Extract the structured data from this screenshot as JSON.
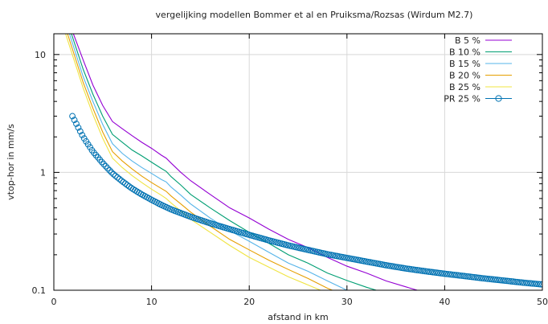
{
  "chart_data": {
    "type": "line",
    "title": "vergelijking modellen Bommer et al en Pruiksma/Rozsas (Wirdum M2.7)",
    "xlabel": "afstand in km",
    "ylabel": "vtop-hor in mm/s",
    "xlim": [
      0,
      50
    ],
    "ylim": [
      0.1,
      15
    ],
    "yscale": "log",
    "grid": true,
    "legend_position": "top-right",
    "x_ticks": [
      0,
      10,
      20,
      30,
      40,
      50
    ],
    "y_ticks": [
      {
        "value": 0.1,
        "label": "0.1"
      },
      {
        "value": 1,
        "label": "1"
      },
      {
        "value": 10,
        "label": "10"
      }
    ],
    "series": [
      {
        "name": "B  5 %",
        "color": "#9400d3",
        "style": "line",
        "points": [
          [
            2.0,
            15
          ],
          [
            3,
            9.0
          ],
          [
            4,
            5.5
          ],
          [
            5,
            3.7
          ],
          [
            6,
            2.7
          ],
          [
            7,
            2.35
          ],
          [
            8,
            2.05
          ],
          [
            9,
            1.8
          ],
          [
            10,
            1.6
          ],
          [
            11,
            1.4
          ],
          [
            11.5,
            1.32
          ],
          [
            12,
            1.2
          ],
          [
            13,
            1.0
          ],
          [
            14,
            0.85
          ],
          [
            16,
            0.65
          ],
          [
            18,
            0.5
          ],
          [
            20,
            0.41
          ],
          [
            22,
            0.33
          ],
          [
            24,
            0.27
          ],
          [
            26,
            0.23
          ],
          [
            28,
            0.19
          ],
          [
            30,
            0.16
          ],
          [
            32,
            0.14
          ],
          [
            34,
            0.12
          ],
          [
            36,
            0.107
          ],
          [
            37.2,
            0.1
          ]
        ]
      },
      {
        "name": "B  10 %",
        "color": "#009e73",
        "style": "line",
        "points": [
          [
            1.8,
            15
          ],
          [
            3,
            7.5
          ],
          [
            4,
            4.6
          ],
          [
            5,
            3.0
          ],
          [
            6,
            2.1
          ],
          [
            7,
            1.8
          ],
          [
            8,
            1.55
          ],
          [
            9,
            1.38
          ],
          [
            10,
            1.22
          ],
          [
            11,
            1.08
          ],
          [
            11.5,
            1.02
          ],
          [
            12,
            0.92
          ],
          [
            13,
            0.78
          ],
          [
            14,
            0.65
          ],
          [
            16,
            0.5
          ],
          [
            18,
            0.39
          ],
          [
            20,
            0.31
          ],
          [
            22,
            0.25
          ],
          [
            24,
            0.2
          ],
          [
            26,
            0.17
          ],
          [
            28,
            0.14
          ],
          [
            30,
            0.121
          ],
          [
            32,
            0.106
          ],
          [
            33,
            0.1
          ]
        ]
      },
      {
        "name": "B  15 %",
        "color": "#56b4e9",
        "style": "line",
        "points": [
          [
            1.6,
            15
          ],
          [
            3,
            6.5
          ],
          [
            4,
            4.0
          ],
          [
            5,
            2.55
          ],
          [
            6,
            1.75
          ],
          [
            7,
            1.45
          ],
          [
            8,
            1.25
          ],
          [
            9,
            1.1
          ],
          [
            10,
            0.98
          ],
          [
            11,
            0.87
          ],
          [
            11.5,
            0.83
          ],
          [
            12,
            0.75
          ],
          [
            13,
            0.64
          ],
          [
            14,
            0.54
          ],
          [
            16,
            0.41
          ],
          [
            18,
            0.32
          ],
          [
            20,
            0.26
          ],
          [
            22,
            0.21
          ],
          [
            24,
            0.17
          ],
          [
            26,
            0.145
          ],
          [
            28,
            0.12
          ],
          [
            30,
            0.1
          ]
        ]
      },
      {
        "name": "B  20 %",
        "color": "#e69f00",
        "style": "line",
        "points": [
          [
            1.4,
            15
          ],
          [
            3,
            5.8
          ],
          [
            4,
            3.5
          ],
          [
            5,
            2.2
          ],
          [
            6,
            1.5
          ],
          [
            7,
            1.25
          ],
          [
            8,
            1.07
          ],
          [
            9,
            0.93
          ],
          [
            10,
            0.82
          ],
          [
            11,
            0.73
          ],
          [
            11.5,
            0.69
          ],
          [
            12,
            0.63
          ],
          [
            13,
            0.54
          ],
          [
            14,
            0.46
          ],
          [
            16,
            0.35
          ],
          [
            18,
            0.27
          ],
          [
            20,
            0.22
          ],
          [
            22,
            0.18
          ],
          [
            24,
            0.15
          ],
          [
            26,
            0.126
          ],
          [
            28,
            0.104
          ],
          [
            28.5,
            0.1
          ]
        ]
      },
      {
        "name": "B  25 %",
        "color": "#f0e442",
        "style": "line",
        "points": [
          [
            1.2,
            15
          ],
          [
            3,
            5.2
          ],
          [
            4,
            3.1
          ],
          [
            5,
            1.95
          ],
          [
            6,
            1.32
          ],
          [
            7,
            1.1
          ],
          [
            8,
            0.94
          ],
          [
            9,
            0.82
          ],
          [
            10,
            0.72
          ],
          [
            11,
            0.64
          ],
          [
            11.5,
            0.6
          ],
          [
            12,
            0.55
          ],
          [
            13,
            0.47
          ],
          [
            14,
            0.4
          ],
          [
            16,
            0.31
          ],
          [
            18,
            0.24
          ],
          [
            20,
            0.19
          ],
          [
            22,
            0.157
          ],
          [
            24,
            0.13
          ],
          [
            26,
            0.111
          ],
          [
            27.3,
            0.1
          ]
        ]
      },
      {
        "name": "PR  25 %",
        "color": "#0072b2",
        "style": "points",
        "points": [
          [
            1.9,
            3.0
          ],
          [
            2.5,
            2.4
          ],
          [
            3,
            2.0
          ],
          [
            4,
            1.5
          ],
          [
            5,
            1.2
          ],
          [
            6,
            0.98
          ],
          [
            7,
            0.84
          ],
          [
            8,
            0.73
          ],
          [
            9,
            0.65
          ],
          [
            10,
            0.585
          ],
          [
            11,
            0.53
          ],
          [
            12,
            0.485
          ],
          [
            14,
            0.42
          ],
          [
            16,
            0.37
          ],
          [
            18,
            0.33
          ],
          [
            20,
            0.295
          ],
          [
            22,
            0.265
          ],
          [
            24,
            0.24
          ],
          [
            26,
            0.22
          ],
          [
            28,
            0.202
          ],
          [
            30,
            0.188
          ],
          [
            32,
            0.175
          ],
          [
            34,
            0.163
          ],
          [
            36,
            0.153
          ],
          [
            38,
            0.145
          ],
          [
            40,
            0.138
          ],
          [
            42,
            0.132
          ],
          [
            44,
            0.126
          ],
          [
            46,
            0.121
          ],
          [
            48,
            0.116
          ],
          [
            50,
            0.112
          ]
        ]
      }
    ]
  }
}
